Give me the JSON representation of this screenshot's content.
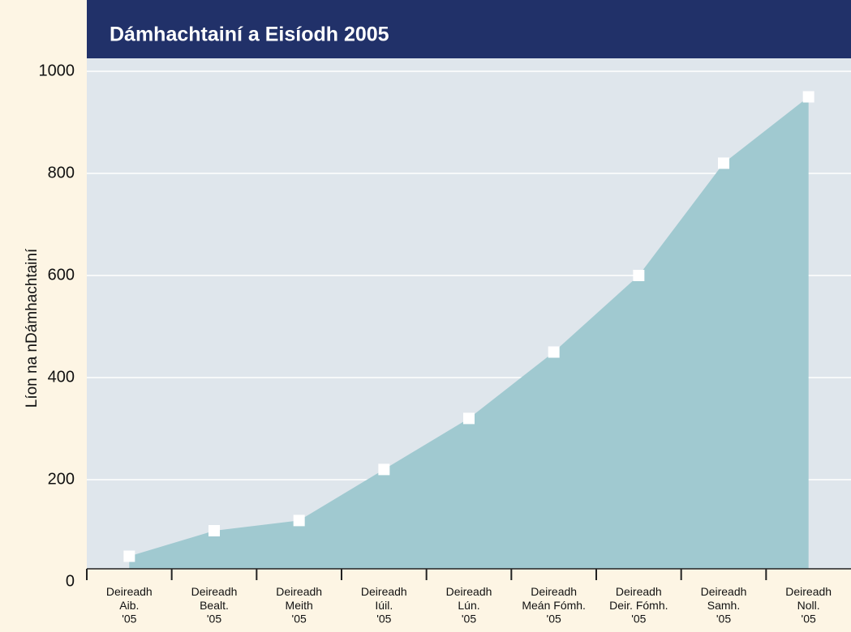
{
  "chart_data": {
    "type": "area",
    "title": "Dámhachtainí a Eisíodh 2005",
    "y_label": "Líon na nDámhachtainí",
    "categories": [
      "Deireadh\nAib.\n'05",
      "Deireadh\nBealt.\n'05",
      "Deireadh\nMeith\n'05",
      "Deireadh\nIúil.\n'05",
      "Deireadh\nLún.\n'05",
      "Deireadh\nMeán Fómh.\n'05",
      "Deireadh\nDeir. Fómh.\n'05",
      "Deireadh\nSamh.\n'05",
      "Deireadh\nNoll.\n'05"
    ],
    "values": [
      50,
      100,
      120,
      220,
      320,
      450,
      600,
      820,
      950
    ],
    "color": "#a0c9d0",
    "marker_color": "#ffffff",
    "ylim": [
      0,
      1000
    ],
    "yticks": [
      0,
      200,
      400,
      600,
      800,
      1000
    ],
    "grid": true
  }
}
